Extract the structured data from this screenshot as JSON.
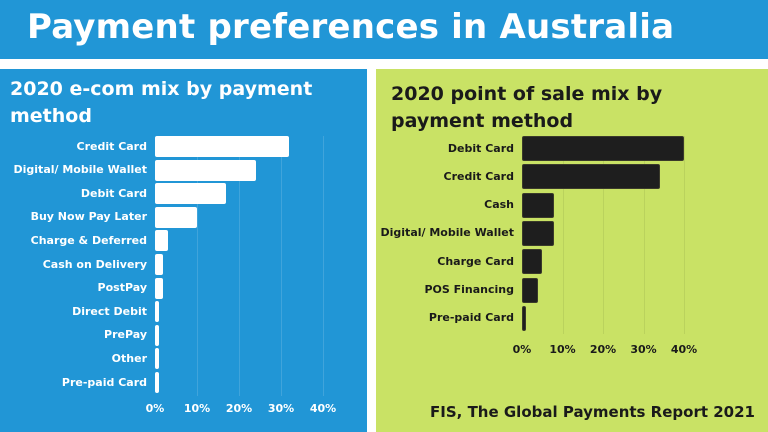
{
  "header": {
    "title": "Payment preferences in Australia",
    "bg_color": "#2196d6"
  },
  "left_panel": {
    "title": "2020 e-com mix by payment method",
    "bg_color": "#2196d6",
    "bar_color": "#ffffff"
  },
  "right_panel": {
    "title": "2020 point of sale mix by payment method",
    "bg_color": "#c9e265",
    "bar_color": "#1e1e1e"
  },
  "source": "FIS, The Global Payments Report 2021",
  "chart_data": [
    {
      "type": "bar",
      "orientation": "horizontal",
      "title": "2020 e-com mix by payment method",
      "categories": [
        "Credit Card",
        "Digital/ Mobile Wallet",
        "Debit Card",
        "Buy Now Pay Later",
        "Charge & Deferred",
        "Cash on Delivery",
        "PostPay",
        "Direct Debit",
        "PrePay",
        "Other",
        "Pre-paid Card"
      ],
      "values": [
        32,
        24,
        17,
        10,
        3,
        2,
        2,
        1,
        1,
        1,
        1
      ],
      "unit": "%",
      "xlabel": "",
      "ylabel": "",
      "xlim": [
        0,
        40
      ],
      "xticks": [
        "0%",
        "10%",
        "20%",
        "30%",
        "40%"
      ],
      "grid": true
    },
    {
      "type": "bar",
      "orientation": "horizontal",
      "title": "2020 point of sale mix by payment method",
      "categories": [
        "Debit Card",
        "Credit Card",
        "Cash",
        "Digital/ Mobile Wallet",
        "Charge Card",
        "POS Financing",
        "Pre-paid Card"
      ],
      "values": [
        40,
        34,
        8,
        8,
        5,
        4,
        1
      ],
      "unit": "%",
      "xlabel": "",
      "ylabel": "",
      "xlim": [
        0,
        40
      ],
      "xticks": [
        "0%",
        "10%",
        "20%",
        "30%",
        "40%"
      ],
      "grid": true
    }
  ]
}
